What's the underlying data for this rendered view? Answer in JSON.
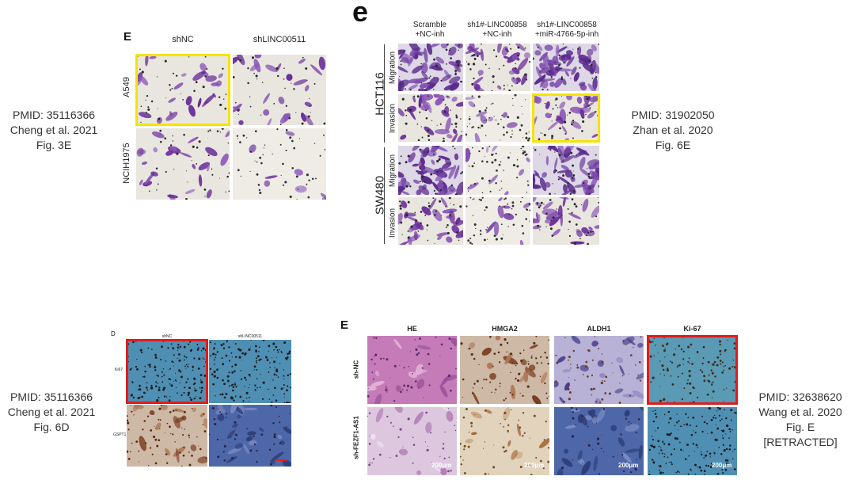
{
  "captions": {
    "top_left": [
      "PMID: 35116366",
      "Cheng et al. 2021",
      "Fig. 3E"
    ],
    "top_right": [
      "PMID: 31902050",
      "Zhan et al. 2020",
      "Fig. 6E"
    ],
    "bottom_left": [
      "PMID: 35116366",
      "Cheng et al. 2021",
      "Fig. 6D"
    ],
    "bottom_right": [
      "PMID: 32638620",
      "Wang et al. 2020",
      "Fig. E",
      "[RETRACTED]"
    ]
  },
  "panel1": {
    "letter": "E",
    "columns": [
      "shNC",
      "shLINC00511"
    ],
    "rows": [
      "A549",
      "NCIH1975"
    ]
  },
  "panel2": {
    "letter": "e",
    "columns": [
      [
        "Scramble",
        "+NC-inh"
      ],
      [
        "sh1#-LINC00858",
        "+NC-inh"
      ],
      [
        "sh1#-LINC00858",
        "+miR-4766-5p-inh"
      ]
    ],
    "groups": [
      "HCT116",
      "SW480"
    ],
    "rows": [
      "Migration",
      "Invasion",
      "Migration",
      "Invasion"
    ]
  },
  "panel3": {
    "letter": "D",
    "columns": [
      "shNC",
      "shLINC00511"
    ],
    "rows": [
      "Ki67",
      "GSPT1"
    ]
  },
  "panel4": {
    "letter": "E",
    "columns": [
      "HE",
      "HMGA2",
      "ALDH1",
      "Ki-67"
    ],
    "rows": [
      "sh-NC",
      "sh-FEZF1-AS1"
    ],
    "scale": "200μm"
  },
  "colors": {
    "highlight_yellow": "#f5e400",
    "highlight_red": "#e21b1b",
    "crystal_violet": "#6a2f9a",
    "ihc_blue": "#4f8fb3",
    "he_pink": "#c47bb7"
  }
}
